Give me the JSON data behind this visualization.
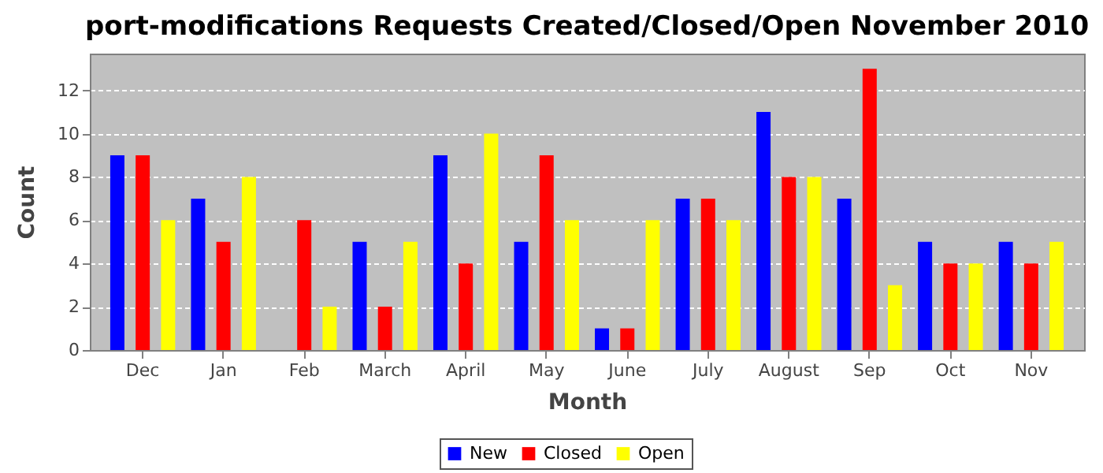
{
  "chart_data": {
    "type": "bar",
    "title": "port-modifications Requests Created/Closed/Open November 2010",
    "xlabel": "Month",
    "ylabel": "Count",
    "categories": [
      "Dec",
      "Jan",
      "Feb",
      "March",
      "April",
      "May",
      "June",
      "July",
      "August",
      "Sep",
      "Oct",
      "Nov"
    ],
    "series": [
      {
        "name": "New",
        "color": "#0000ff",
        "values": [
          9,
          7,
          0,
          5,
          9,
          5,
          1,
          7,
          11,
          7,
          5,
          5
        ]
      },
      {
        "name": "Closed",
        "color": "#ff0000",
        "values": [
          9,
          5,
          6,
          2,
          4,
          9,
          1,
          7,
          8,
          13,
          4,
          4
        ]
      },
      {
        "name": "Open",
        "color": "#ffff00",
        "values": [
          6,
          8,
          2,
          5,
          10,
          6,
          6,
          6,
          8,
          3,
          4,
          5
        ]
      }
    ],
    "ylim": [
      0,
      13.7
    ],
    "yticks": [
      0,
      2,
      4,
      6,
      8,
      10,
      12
    ],
    "grid": "y",
    "legend": "bottom"
  }
}
